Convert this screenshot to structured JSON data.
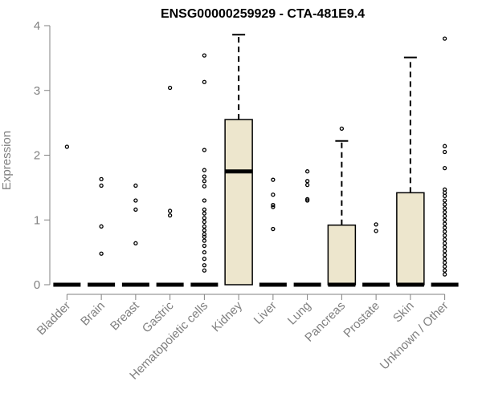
{
  "chart_data": {
    "type": "boxplot",
    "title": "ENSG00000259929 - CTA-481E9.4",
    "xlabel": "",
    "ylabel": "Expression",
    "ylim": [
      0,
      4
    ],
    "yticks": [
      "0",
      "1",
      "2",
      "3",
      "4"
    ],
    "grid": false,
    "colors": {
      "box_fill": "#ede6cd",
      "stroke": "#000000",
      "axis": "#808080"
    },
    "categories": [
      "Bladder",
      "Brain",
      "Breast",
      "Gastric",
      "Hematopoietic cells",
      "Kidney",
      "Liver",
      "Lung",
      "Pancreas",
      "Prostate",
      "Skin",
      "Unknown / Other"
    ],
    "boxes": [
      {
        "q1": 0,
        "median": 0,
        "q3": 0,
        "whisker_low": 0,
        "whisker_high": 0,
        "outliers": [
          2.13
        ]
      },
      {
        "q1": 0,
        "median": 0,
        "q3": 0,
        "whisker_low": 0,
        "whisker_high": 0,
        "outliers": [
          1.63,
          1.53,
          0.9,
          0.48
        ]
      },
      {
        "q1": 0,
        "median": 0,
        "q3": 0,
        "whisker_low": 0,
        "whisker_high": 0,
        "outliers": [
          1.53,
          1.3,
          1.16,
          0.64
        ]
      },
      {
        "q1": 0,
        "median": 0,
        "q3": 0,
        "whisker_low": 0,
        "whisker_high": 0,
        "outliers": [
          3.04,
          1.14,
          1.07
        ]
      },
      {
        "q1": 0,
        "median": 0,
        "q3": 0,
        "whisker_low": 0,
        "whisker_high": 0,
        "outliers": [
          3.54,
          3.13,
          2.08,
          1.77,
          1.67,
          1.6,
          1.52,
          1.3,
          1.16,
          1.1,
          1.03,
          0.97,
          0.9,
          0.84,
          0.78,
          0.74,
          0.68,
          0.6,
          0.5,
          0.4,
          0.3,
          0.22
        ]
      },
      {
        "q1": 0,
        "median": 1.75,
        "q3": 2.55,
        "whisker_low": 0,
        "whisker_high": 3.86,
        "outliers": []
      },
      {
        "q1": 0,
        "median": 0,
        "q3": 0,
        "whisker_low": 0,
        "whisker_high": 0,
        "outliers": [
          1.62,
          1.39,
          1.23,
          1.2,
          0.86
        ]
      },
      {
        "q1": 0,
        "median": 0,
        "q3": 0,
        "whisker_low": 0,
        "whisker_high": 0,
        "outliers": [
          1.75,
          1.6,
          1.54,
          1.32,
          1.3
        ]
      },
      {
        "q1": 0,
        "median": 0,
        "q3": 0.92,
        "whisker_low": 0,
        "whisker_high": 2.22,
        "outliers": [
          2.41
        ]
      },
      {
        "q1": 0,
        "median": 0,
        "q3": 0,
        "whisker_low": 0,
        "whisker_high": 0,
        "outliers": [
          0.93,
          0.83
        ]
      },
      {
        "q1": 0,
        "median": 0,
        "q3": 1.42,
        "whisker_low": 0,
        "whisker_high": 3.51,
        "outliers": []
      },
      {
        "q1": 0,
        "median": 0,
        "q3": 0,
        "whisker_low": 0,
        "whisker_high": 0,
        "outliers": [
          3.8,
          2.14,
          2.05,
          1.8,
          1.47,
          1.42,
          1.37,
          1.3,
          1.24,
          1.18,
          1.12,
          1.06,
          1.0,
          0.94,
          0.88,
          0.82,
          0.76,
          0.7,
          0.64,
          0.58,
          0.52,
          0.46,
          0.4,
          0.34,
          0.28,
          0.22,
          0.16
        ]
      }
    ]
  }
}
